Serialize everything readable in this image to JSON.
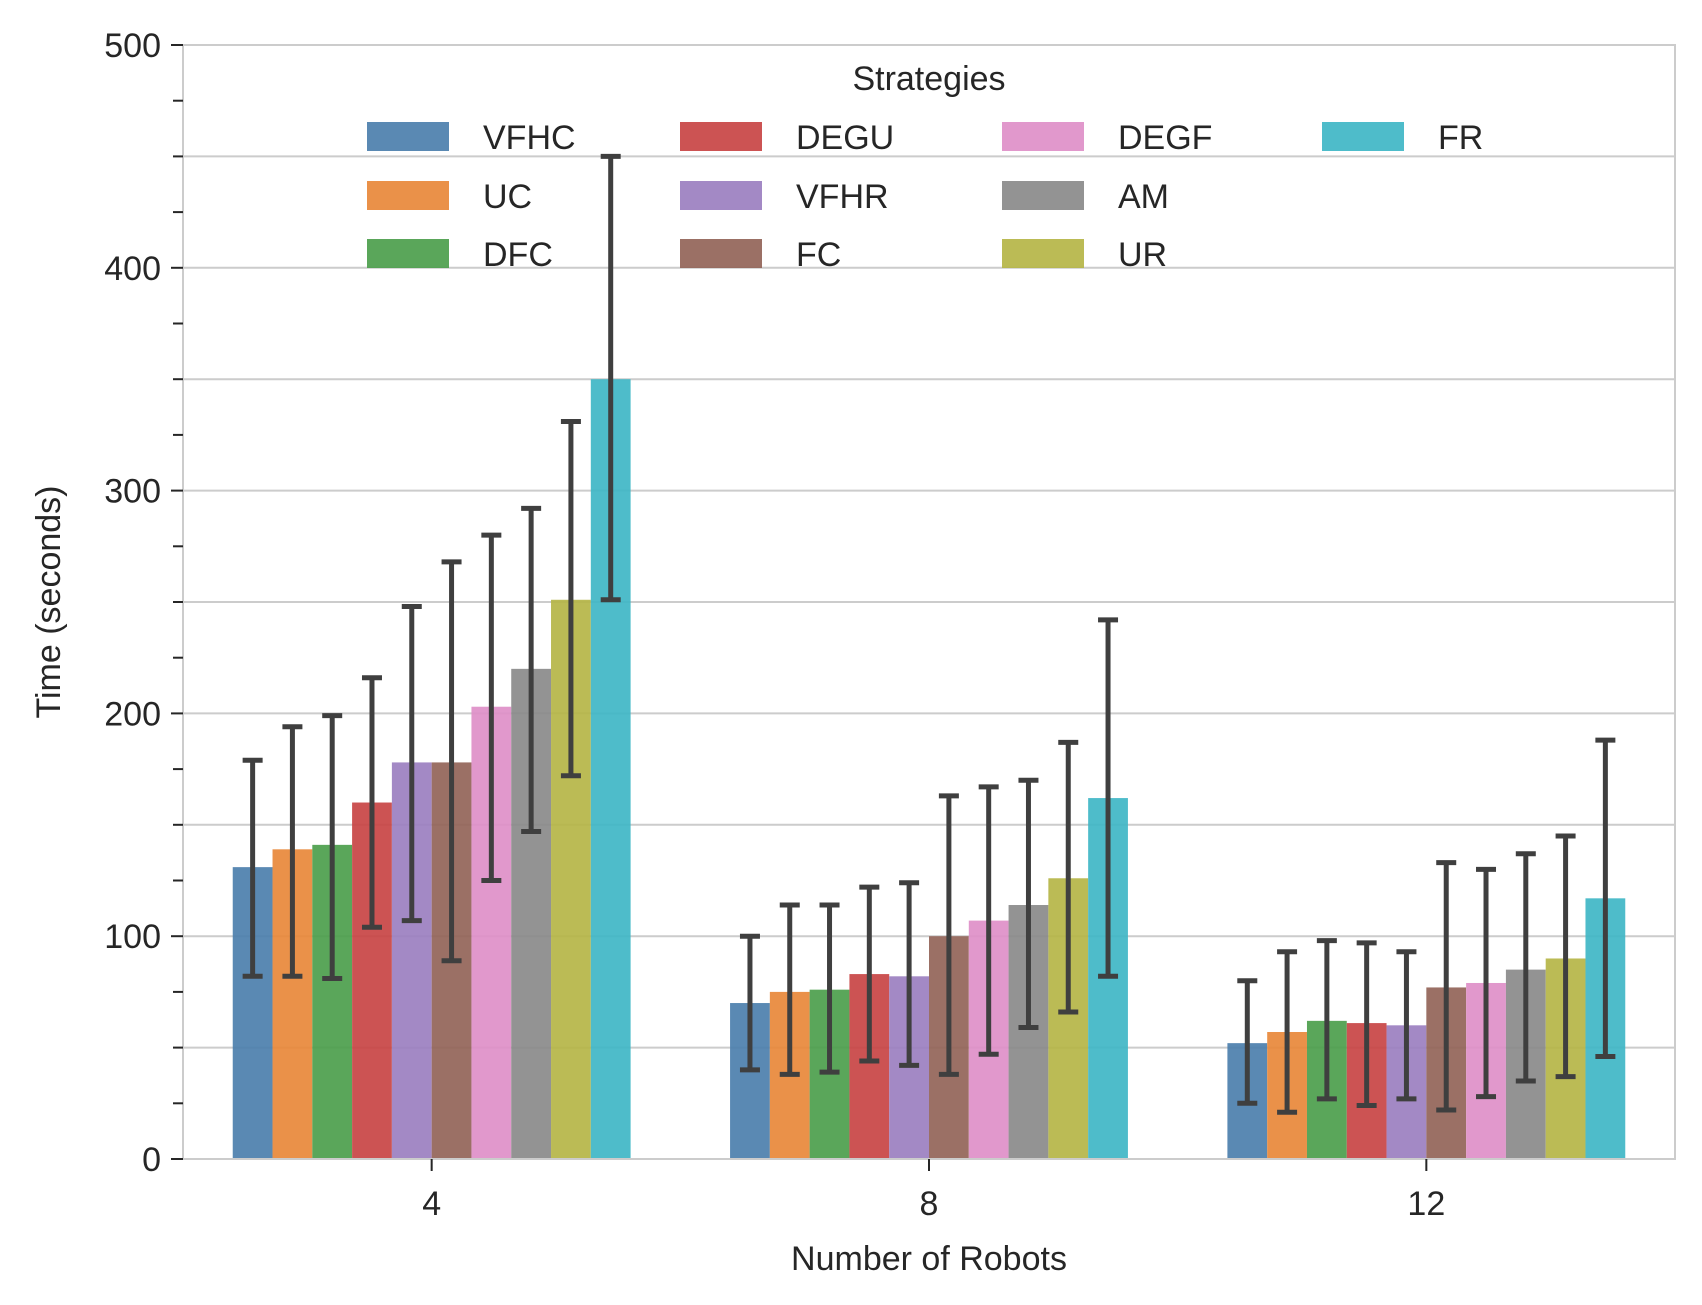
{
  "chart_data": {
    "type": "bar",
    "title": "",
    "xlabel": "Number of Robots",
    "ylabel": "Time (seconds)",
    "ylim": [
      0,
      500
    ],
    "yticks": [
      "0",
      "100",
      "200",
      "300",
      "400",
      "500"
    ],
    "grid": true,
    "categories": [
      "4",
      "8",
      "12"
    ],
    "legend": {
      "title": "Strategies",
      "placement": "top-center",
      "columns": 4
    },
    "series": [
      {
        "name": "VFHC",
        "color": "#4c7fad",
        "values": [
          131,
          70,
          52
        ],
        "err_low": [
          82,
          40,
          25
        ],
        "err_high": [
          179,
          100,
          80
        ]
      },
      {
        "name": "UC",
        "color": "#e8883a",
        "values": [
          139,
          75,
          57
        ],
        "err_low": [
          82,
          38,
          21
        ],
        "err_high": [
          194,
          114,
          93
        ]
      },
      {
        "name": "DFC",
        "color": "#4c9e4c",
        "values": [
          141,
          76,
          62
        ],
        "err_low": [
          81,
          39,
          27
        ],
        "err_high": [
          199,
          114,
          98
        ]
      },
      {
        "name": "DEGU",
        "color": "#c84444",
        "values": [
          160,
          83,
          61
        ],
        "err_low": [
          104,
          44,
          24
        ],
        "err_high": [
          216,
          122,
          97
        ]
      },
      {
        "name": "VFHR",
        "color": "#9b7fc0",
        "values": [
          178,
          82,
          60
        ],
        "err_low": [
          107,
          42,
          27
        ],
        "err_high": [
          248,
          124,
          93
        ]
      },
      {
        "name": "FC",
        "color": "#936458",
        "values": [
          178,
          100,
          77
        ],
        "err_low": [
          89,
          38,
          22
        ],
        "err_high": [
          268,
          163,
          133
        ]
      },
      {
        "name": "DEGF",
        "color": "#de8fc8",
        "values": [
          203,
          107,
          79
        ],
        "err_low": [
          125,
          47,
          28
        ],
        "err_high": [
          280,
          167,
          130
        ]
      },
      {
        "name": "AM",
        "color": "#8a8a8a",
        "values": [
          220,
          114,
          85
        ],
        "err_low": [
          147,
          59,
          35
        ],
        "err_high": [
          292,
          170,
          137
        ]
      },
      {
        "name": "UR",
        "color": "#b5b546",
        "values": [
          251,
          126,
          90
        ],
        "err_low": [
          172,
          66,
          37
        ],
        "err_high": [
          331,
          187,
          145
        ]
      },
      {
        "name": "FR",
        "color": "#3fb6c6",
        "values": [
          350,
          162,
          117
        ],
        "err_low": [
          251,
          82,
          46
        ],
        "err_high": [
          450,
          242,
          188
        ]
      }
    ]
  }
}
